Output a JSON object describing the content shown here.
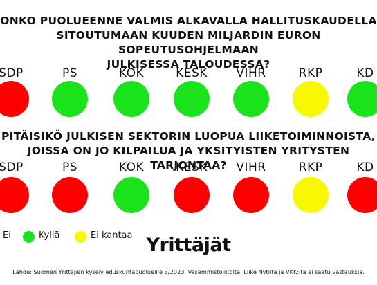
{
  "question1": {
    "lines": [
      "ONKO PUOLUEENNE VALMIS ALKAVALLA HALLITUSKAUDELLA",
      "SITOUTUMAAN KUUDEN MILJARDIN EURON SOPEUTUSOHJELMAAN",
      "JULKISESSA TALOUDESSA?"
    ],
    "parties": [
      {
        "label": "SDP",
        "answer": "Ei"
      },
      {
        "label": "PS",
        "answer": "Kyllä"
      },
      {
        "label": "KOK",
        "answer": "Kyllä"
      },
      {
        "label": "KESK",
        "answer": "Kyllä"
      },
      {
        "label": "VIHR",
        "answer": "Kyllä"
      },
      {
        "label": "RKP",
        "answer": "Ei kantaa"
      },
      {
        "label": "KD",
        "answer": "Kyllä"
      }
    ]
  },
  "question2": {
    "lines": [
      "PITÄISIKÖ JULKISEN SEKTORIN LUOPUA LIIKETOIMINNOISTA,",
      "JOISSA ON JO KILPAILUA JA YKSITYISTEN YRITYSTEN TARJONTAA?"
    ],
    "parties": [
      {
        "label": "SDP",
        "answer": "Ei"
      },
      {
        "label": "PS",
        "answer": "Ei"
      },
      {
        "label": "KOK",
        "answer": "Kyllä"
      },
      {
        "label": "KESK",
        "answer": "Ei"
      },
      {
        "label": "VIHR",
        "answer": "Ei"
      },
      {
        "label": "RKP",
        "answer": "Ei kantaa"
      },
      {
        "label": "KD",
        "answer": "Ei"
      }
    ]
  },
  "legend": {
    "no": {
      "label": "Ei",
      "color": "#ff0000"
    },
    "yes": {
      "label": "Kyllä",
      "color": "#1be31b"
    },
    "no_stance": {
      "label": "Ei kantaa",
      "color": "#f8f800"
    }
  },
  "brand": "Yrittäjät",
  "source": "Lähde: Suomen Yrittäjien kysely eduskuntapuolueille 3/2023. Vasemmistoliitolta, Liike Nytiltä ja VKK:lta ei saatu vastauksia."
}
